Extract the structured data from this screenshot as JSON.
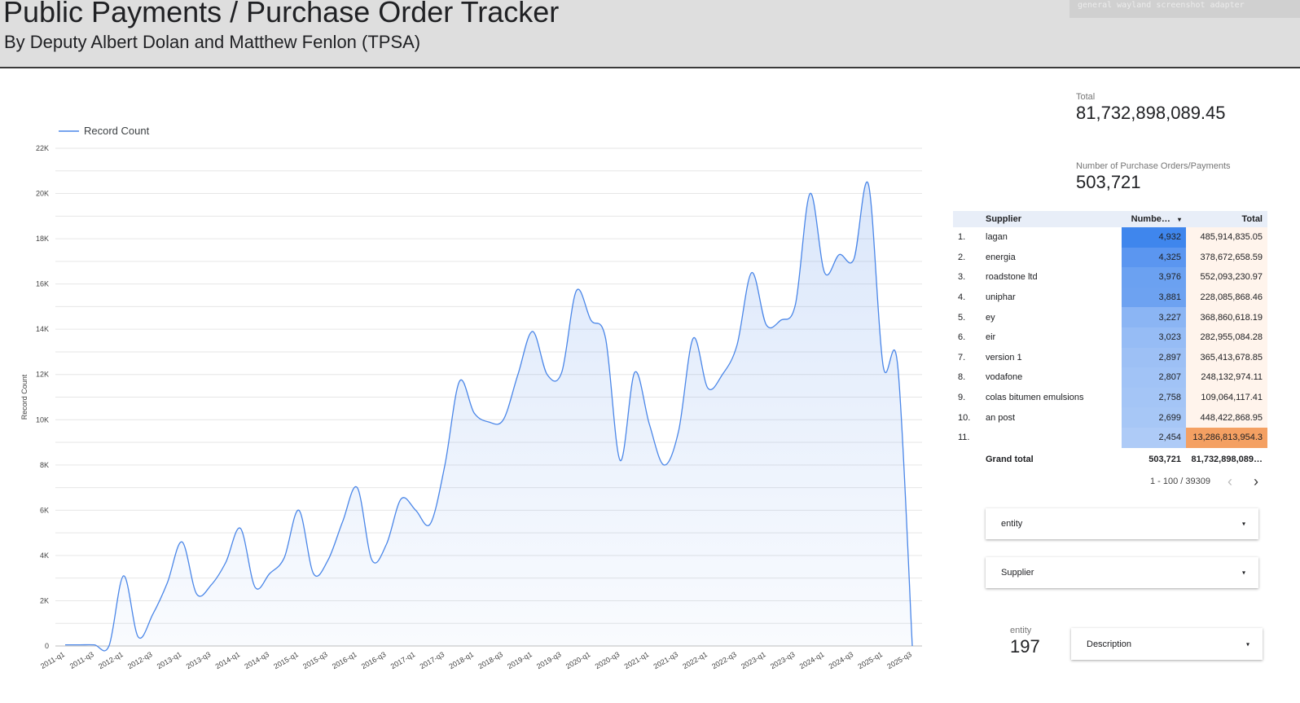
{
  "header": {
    "title": "Public Payments / Purchase Order Tracker",
    "subtitle": "By Deputy Albert Dolan and Matthew Fenlon (TPSA)",
    "adapter_label": "general wayland screenshot adapter"
  },
  "scorecards": {
    "total_label": "Total",
    "total_value": "81,732,898,089.45",
    "count_label": "Number of Purchase Orders/Payments",
    "count_value": "503,721",
    "entity_label": "entity",
    "entity_value": "197"
  },
  "table": {
    "headers": {
      "supplier": "Supplier",
      "number": "Numbe…",
      "total": "Total",
      "sort_icon": "▾"
    },
    "rows": [
      {
        "idx": "1.",
        "supplier": "lagan",
        "number": "4,932",
        "total": "485,914,835.05"
      },
      {
        "idx": "2.",
        "supplier": "energia",
        "number": "4,325",
        "total": "378,672,658.59"
      },
      {
        "idx": "3.",
        "supplier": "roadstone ltd",
        "number": "3,976",
        "total": "552,093,230.97"
      },
      {
        "idx": "4.",
        "supplier": "uniphar",
        "number": "3,881",
        "total": "228,085,868.46"
      },
      {
        "idx": "5.",
        "supplier": "ey",
        "number": "3,227",
        "total": "368,860,618.19"
      },
      {
        "idx": "6.",
        "supplier": "eir",
        "number": "3,023",
        "total": "282,955,084.28"
      },
      {
        "idx": "7.",
        "supplier": "version 1",
        "number": "2,897",
        "total": "365,413,678.85"
      },
      {
        "idx": "8.",
        "supplier": "vodafone",
        "number": "2,807",
        "total": "248,132,974.11"
      },
      {
        "idx": "9.",
        "supplier": "colas bitumen emulsions",
        "number": "2,758",
        "total": "109,064,117.41"
      },
      {
        "idx": "10.",
        "supplier": "an post",
        "number": "2,699",
        "total": "448,422,868.95"
      },
      {
        "idx": "11.",
        "supplier": "",
        "number": "2,454",
        "total": "13,286,813,954.3"
      }
    ],
    "grand_total_label": "Grand total",
    "grand_total_number": "503,721",
    "grand_total_total": "81,732,898,089…",
    "pager": "1 - 100 / 39309",
    "heat_colors": [
      "#3f86ed",
      "#5b96f0",
      "#6ba1f1",
      "#6da2f1",
      "#8bb5f4",
      "#96bcf5",
      "#9dc0f5",
      "#a1c3f6",
      "#a4c5f6",
      "#a7c7f6",
      "#aecbf7"
    ],
    "highlight_color": "#f4a062"
  },
  "dropdowns": {
    "entity": "entity",
    "supplier": "Supplier",
    "description": "Description",
    "arrow": "▾"
  },
  "chart_data": {
    "type": "area",
    "legend": [
      "Record Count"
    ],
    "ylabel": "Record Count",
    "xlabel": "",
    "ylim": [
      0,
      22000
    ],
    "yticks": [
      "0",
      "2K",
      "4K",
      "6K",
      "8K",
      "10K",
      "12K",
      "14K",
      "16K",
      "18K",
      "20K",
      "22K"
    ],
    "color": "#4a86e8",
    "x": [
      "2011-q1",
      "2011-q2",
      "2011-q3",
      "2011-q4",
      "2012-q1",
      "2012-q2",
      "2012-q3",
      "2012-q4",
      "2013-q1",
      "2013-q2",
      "2013-q3",
      "2013-q4",
      "2014-q1",
      "2014-q2",
      "2014-q3",
      "2014-q4",
      "2015-q1",
      "2015-q2",
      "2015-q3",
      "2015-q4",
      "2016-q1",
      "2016-q2",
      "2016-q3",
      "2016-q4",
      "2017-q1",
      "2017-q2",
      "2017-q3",
      "2017-q4",
      "2018-q1",
      "2018-q2",
      "2018-q3",
      "2018-q4",
      "2019-q1",
      "2019-q2",
      "2019-q3",
      "2019-q4",
      "2020-q1",
      "2020-q2",
      "2020-q3",
      "2020-q4",
      "2021-q1",
      "2021-q2",
      "2021-q3",
      "2021-q4",
      "2022-q1",
      "2022-q2",
      "2022-q3",
      "2022-q4",
      "2023-q1",
      "2023-q2",
      "2023-q3",
      "2023-q4",
      "2024-q1",
      "2024-q2",
      "2024-q3",
      "2024-q4",
      "2025-q1",
      "2025-q2",
      "2025-q3"
    ],
    "x_tick_labels": [
      "2011-q1",
      "2011-q3",
      "2012-q1",
      "2012-q3",
      "2013-q1",
      "2013-q3",
      "2014-q1",
      "2014-q3",
      "2015-q1",
      "2015-q3",
      "2016-q1",
      "2016-q3",
      "2017-q1",
      "2017-q3",
      "2018-q1",
      "2018-q3",
      "2019-q1",
      "2019-q3",
      "2020-q1",
      "2020-q3",
      "2021-q1",
      "2021-q3",
      "2022-q1",
      "2022-q3",
      "2023-q1",
      "2023-q3",
      "2024-q1",
      "2024-q3",
      "2025-q1",
      "2025-q3"
    ],
    "values": [
      50,
      50,
      50,
      0,
      3100,
      400,
      1400,
      2800,
      4600,
      2300,
      2700,
      3700,
      5200,
      2600,
      3200,
      3900,
      6000,
      3200,
      3800,
      5500,
      7000,
      3800,
      4500,
      6500,
      6000,
      5400,
      8000,
      11700,
      10300,
      9900,
      10000,
      12000,
      13900,
      12000,
      12100,
      15700,
      14400,
      13600,
      8200,
      12100,
      9800,
      8000,
      9500,
      13600,
      11400,
      12000,
      13300,
      16500,
      14200,
      14400,
      15100,
      20000,
      16500,
      17300,
      17100,
      20400,
      12400,
      12400,
      0
    ]
  }
}
